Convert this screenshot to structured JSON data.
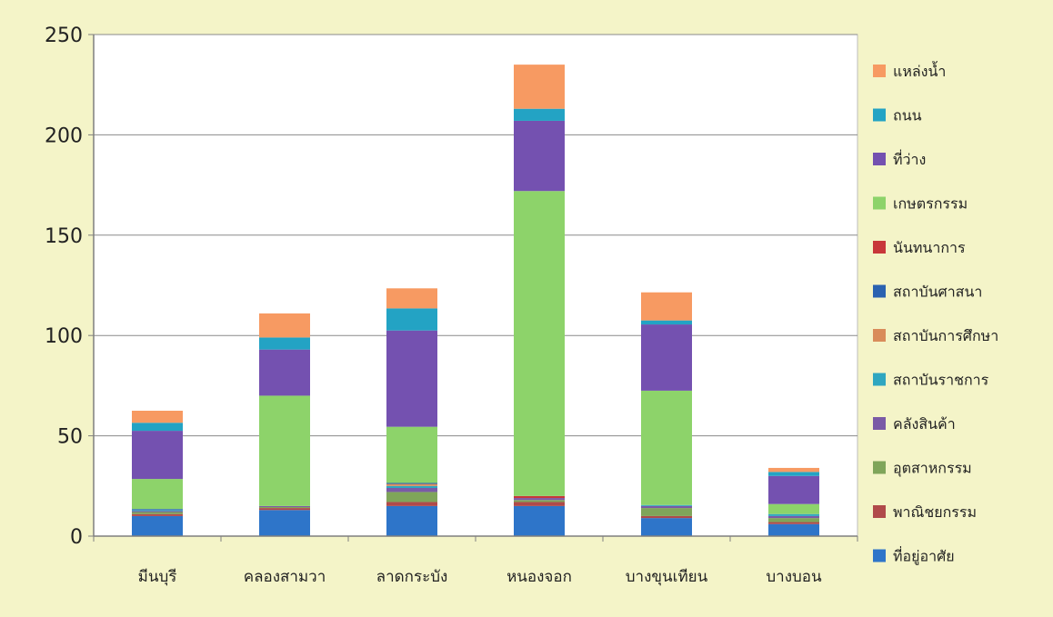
{
  "chart_data": {
    "type": "bar",
    "stacked": true,
    "categories": [
      "มีนบุรี",
      "คลองสามวา",
      "ลาดกระบัง",
      "หนองจอก",
      "บางขุนเทียน",
      "บางบอน"
    ],
    "ylim": [
      0,
      250
    ],
    "yticks": [
      0,
      50,
      100,
      150,
      200,
      250
    ],
    "grid": true,
    "legend_position": "right",
    "series": [
      {
        "name": "ที่อยู่อาศัย",
        "color": "#2e75c9",
        "values": [
          10,
          13,
          15,
          15,
          9,
          6
        ]
      },
      {
        "name": "พาณิชยกรรม",
        "color": "#b04a4a",
        "values": [
          1,
          1,
          2,
          2,
          1,
          1
        ]
      },
      {
        "name": "อุตสาหกรรม",
        "color": "#7fa55a",
        "values": [
          1,
          0.5,
          5,
          1,
          4,
          2
        ]
      },
      {
        "name": "คลังสินค้า",
        "color": "#7a5aa6",
        "values": [
          0.5,
          0.5,
          2,
          1,
          1,
          1
        ]
      },
      {
        "name": "สถาบันราชการ",
        "color": "#2fa6c0",
        "values": [
          0.5,
          0,
          1,
          0,
          0.5,
          1
        ]
      },
      {
        "name": "สถาบันการศึกษา",
        "color": "#d98c5a",
        "values": [
          0,
          0,
          1,
          0,
          0,
          0
        ]
      },
      {
        "name": "สถาบันศาสนา",
        "color": "#2a62b0",
        "values": [
          0.5,
          0,
          0.5,
          0,
          0,
          0
        ]
      },
      {
        "name": "นันทนาการ",
        "color": "#c8373a",
        "values": [
          0,
          0,
          0,
          1,
          0,
          0
        ]
      },
      {
        "name": "เกษตรกรรม",
        "color": "#8dd36a",
        "values": [
          15,
          55,
          28,
          152,
          57,
          5
        ]
      },
      {
        "name": "ที่ว่าง",
        "color": "#7451b0",
        "values": [
          24,
          23,
          48,
          35,
          33,
          14
        ]
      },
      {
        "name": "ถนน",
        "color": "#23a3c4",
        "values": [
          4,
          6,
          11,
          6,
          2,
          2
        ]
      },
      {
        "name": "แหล่งน้ำ",
        "color": "#f79a62",
        "values": [
          6,
          12,
          10,
          22,
          14,
          2
        ]
      }
    ]
  }
}
